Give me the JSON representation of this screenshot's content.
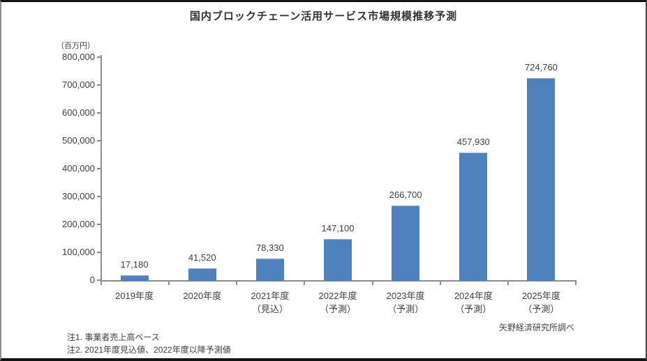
{
  "chart_data": {
    "type": "bar",
    "title": "国内ブロックチェーン活用サービス市場規模推移予測",
    "unit_label": "（百万円）",
    "categories": [
      "2019年度",
      "2020年度",
      "2021年度",
      "2022年度",
      "2023年度",
      "2024年度",
      "2025年度"
    ],
    "category_notes": [
      "",
      "",
      "（見込）",
      "（予測）",
      "（予測）",
      "（予測）",
      "（予測）"
    ],
    "values": [
      17180,
      41520,
      78330,
      147100,
      266700,
      457930,
      724760
    ],
    "value_labels": [
      "17,180",
      "41,520",
      "78,330",
      "147,100",
      "266,700",
      "457,930",
      "724,760"
    ],
    "ylabel": "（百万円）",
    "xlabel": "",
    "ylim": [
      0,
      800000
    ],
    "ytick_step": 100000,
    "ytick_labels": [
      "0",
      "100,000",
      "200,000",
      "300,000",
      "400,000",
      "500,000",
      "600,000",
      "700,000",
      "800,000"
    ],
    "grid": false,
    "legend_position": "none",
    "notes": [
      "注1. 事業者売上高ベース",
      "注2. 2021年度見込値、2022年度以降予測値"
    ],
    "source": "矢野経済研究所調べ",
    "colors": {
      "bar": "#4f81bd",
      "axis": "#8c8c8c",
      "text": "#3f3f3f"
    }
  }
}
